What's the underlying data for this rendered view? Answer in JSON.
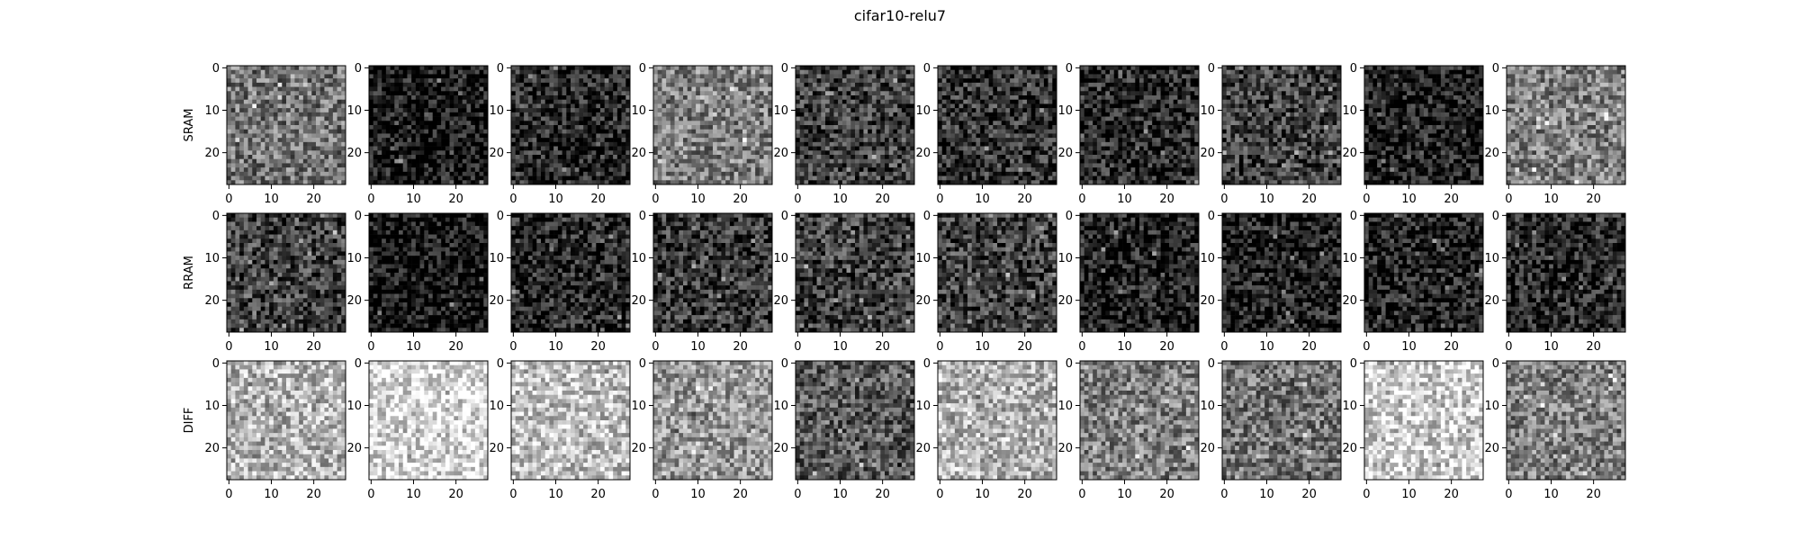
{
  "chart_data": {
    "type": "heatmap",
    "title": "cifar10-relu7",
    "rows": [
      "SRAM",
      "RRAM",
      "DIFF"
    ],
    "columns": 10,
    "grid_size": 28,
    "colormap": "gray",
    "x_ticks": [
      "0",
      "10",
      "20"
    ],
    "y_ticks": [
      "0",
      "10",
      "20"
    ],
    "xlim": [
      0,
      27
    ],
    "ylim": [
      27,
      0
    ],
    "panel_background_gray": [
      [
        0.45,
        0.08,
        0.15,
        0.5,
        0.25,
        0.2,
        0.15,
        0.25,
        0.1,
        0.5
      ],
      [
        0.25,
        0.06,
        0.15,
        0.22,
        0.25,
        0.25,
        0.12,
        0.12,
        0.12,
        0.15
      ],
      [
        0.7,
        0.85,
        0.75,
        0.6,
        0.35,
        0.7,
        0.5,
        0.45,
        0.8,
        0.5
      ]
    ]
  }
}
